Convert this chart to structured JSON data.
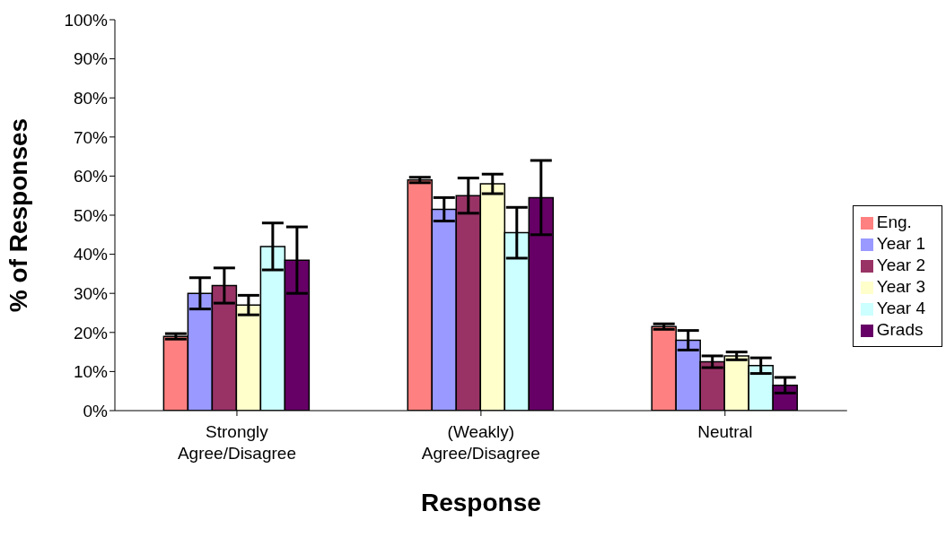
{
  "chart_data": {
    "type": "bar",
    "xlabel": "Response",
    "ylabel": "% of Responses",
    "categories": [
      "Strongly Agree/Disagree",
      "(Weakly) Agree/Disagree",
      "Neutral"
    ],
    "series": [
      {
        "name": "Eng.",
        "color": "#ff8080",
        "values": [
          19,
          59,
          21.5
        ],
        "errors": [
          0.7,
          0.7,
          0.7
        ]
      },
      {
        "name": "Year 1",
        "color": "#9999ff",
        "values": [
          30,
          51.5,
          18
        ],
        "errors": [
          4,
          3,
          2.5
        ]
      },
      {
        "name": "Year 2",
        "color": "#993366",
        "values": [
          32,
          55,
          12.5
        ],
        "errors": [
          4.5,
          4.5,
          1.5
        ]
      },
      {
        "name": "Year 3",
        "color": "#ffffcc",
        "values": [
          27,
          58,
          14
        ],
        "errors": [
          2.5,
          2.5,
          1
        ]
      },
      {
        "name": "Year 4",
        "color": "#ccffff",
        "values": [
          42,
          45.5,
          11.5
        ],
        "errors": [
          6,
          6.5,
          2
        ]
      },
      {
        "name": "Grads",
        "color": "#660066",
        "values": [
          38.5,
          54.5,
          6.5
        ],
        "errors": [
          8.5,
          9.5,
          2
        ]
      }
    ],
    "ylim": [
      0,
      100
    ],
    "yticks": [
      {
        "value": 0,
        "label": "0%"
      },
      {
        "value": 10,
        "label": "10%"
      },
      {
        "value": 20,
        "label": "20%"
      },
      {
        "value": 30,
        "label": "30%"
      },
      {
        "value": 40,
        "label": "40%"
      },
      {
        "value": 50,
        "label": "50%"
      },
      {
        "value": 60,
        "label": "60%"
      },
      {
        "value": 70,
        "label": "70%"
      },
      {
        "value": 80,
        "label": "80%"
      },
      {
        "value": 90,
        "label": "90%"
      },
      {
        "value": 100,
        "label": "100%"
      }
    ],
    "grid": false,
    "legend": "right"
  }
}
